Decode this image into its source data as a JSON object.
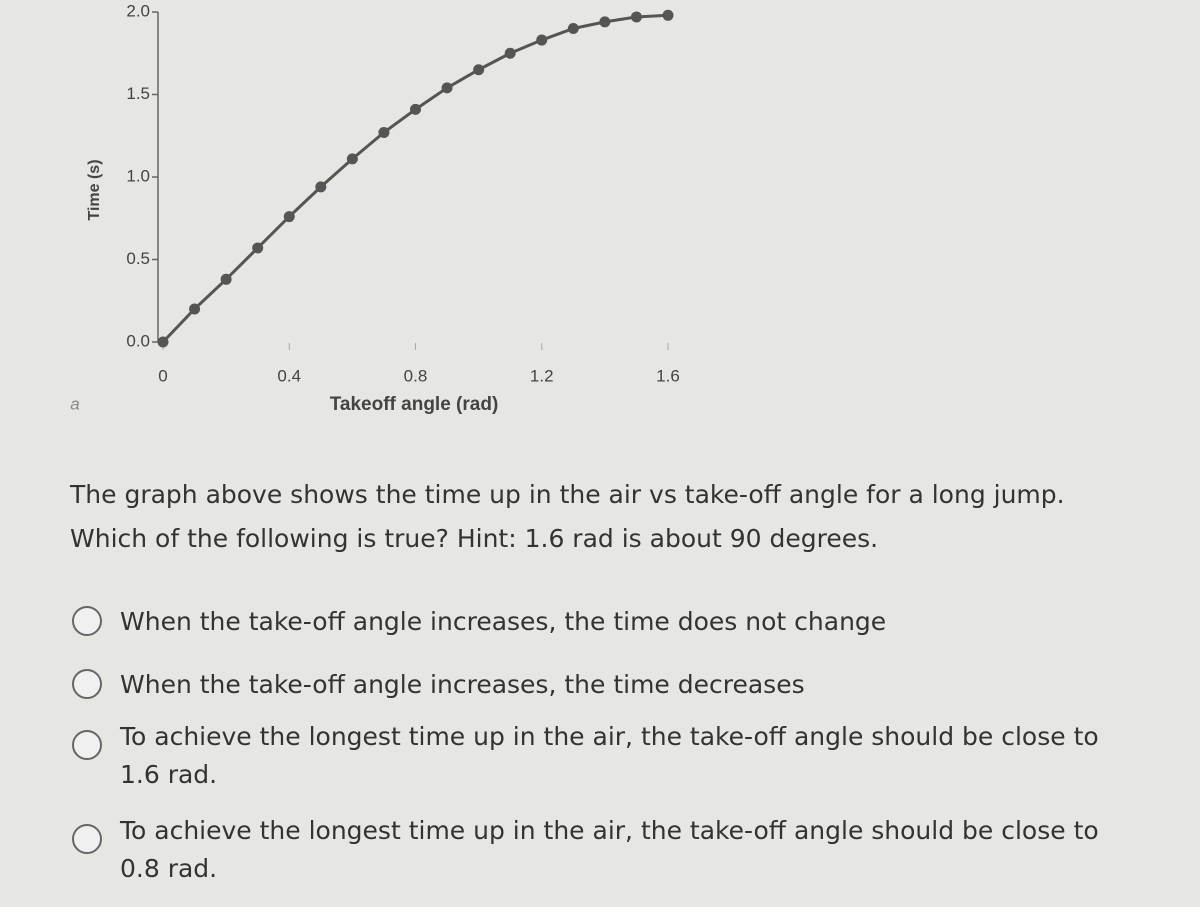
{
  "chart_data": {
    "type": "line",
    "y_label": "Time (s)",
    "x_label": "Takeoff angle (rad)",
    "panel_label": "a",
    "x": [
      0,
      0.1,
      0.2,
      0.3,
      0.4,
      0.5,
      0.6,
      0.7,
      0.8,
      0.9,
      1.0,
      1.1,
      1.2,
      1.3,
      1.4,
      1.5,
      1.6
    ],
    "values": [
      0,
      0.2,
      0.38,
      0.57,
      0.76,
      0.94,
      1.11,
      1.27,
      1.41,
      1.54,
      1.65,
      1.75,
      1.83,
      1.9,
      1.94,
      1.97,
      1.98
    ],
    "color": "#555555",
    "xlim": [
      0,
      1.6
    ],
    "xticks": [
      0,
      0.4,
      0.8,
      1.2,
      1.6
    ],
    "ylim": [
      0,
      2
    ],
    "yticks": [
      {
        "value": 0,
        "label": "0.0"
      },
      0.5,
      {
        "value": 1,
        "label": "1.0"
      },
      1.5,
      {
        "value": 2,
        "label": "2.0"
      }
    ]
  },
  "question": [
    "The graph above shows the time up in the air vs take-off angle for a long jump.",
    "Which of the following is true? Hint: 1.6 rad is about 90 degrees."
  ],
  "options": [
    "When the take-off angle increases, the time does not change",
    "When the take-off angle increases, the time decreases",
    "To achieve the longest time up in the air, the take-off angle should be close to 1.6 rad.",
    "To achieve the longest time up in the air, the take-off angle should be close to 0.8 rad."
  ]
}
